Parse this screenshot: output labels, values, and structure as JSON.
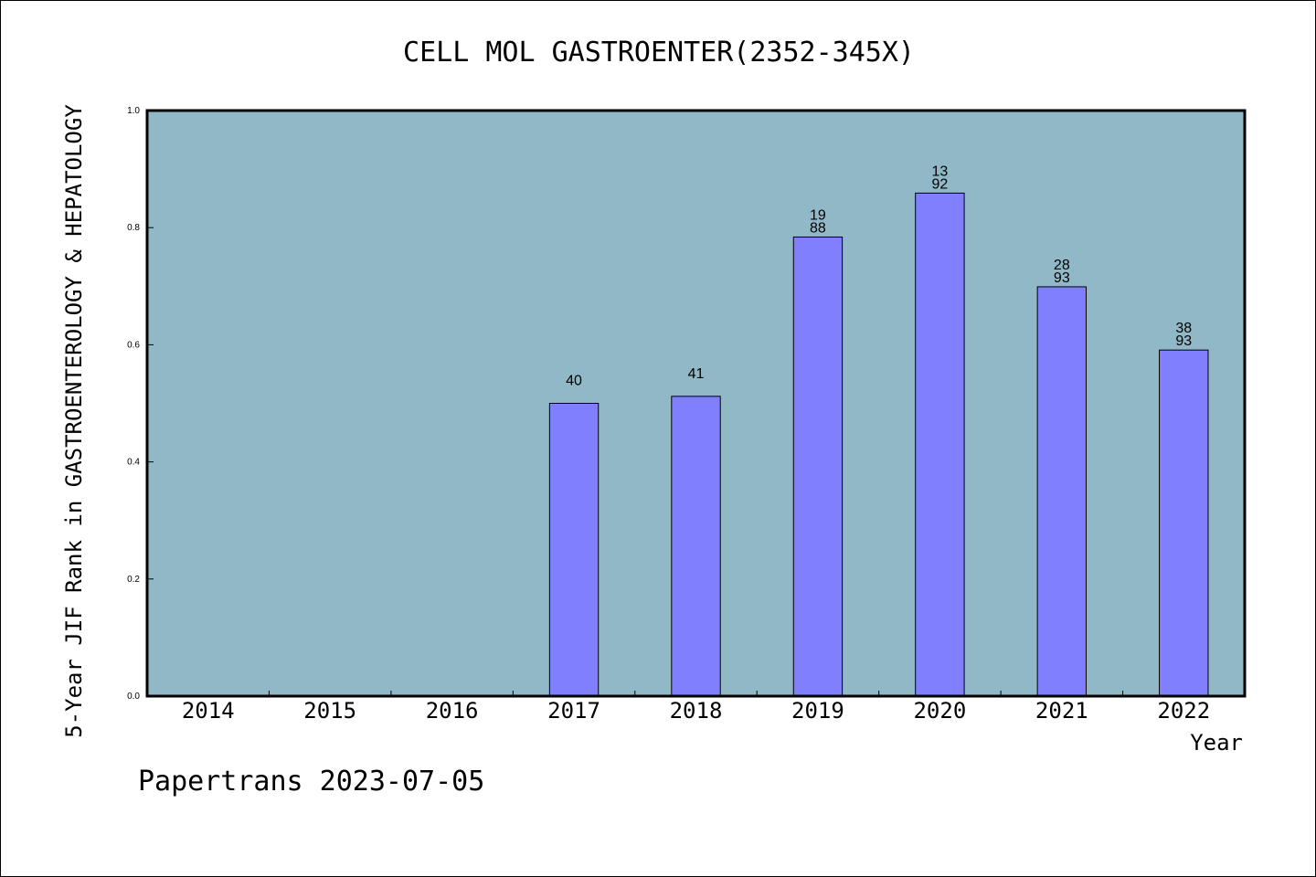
{
  "chart_data": {
    "type": "bar",
    "title": "CELL MOL GASTROENTER(2352-345X)",
    "xlabel": "Year",
    "ylabel": "5-Year JIF Rank in GASTROENTEROLOGY & HEPATOLOGY",
    "categories": [
      "2014",
      "2015",
      "2016",
      "2017",
      "2018",
      "2019",
      "2020",
      "2021",
      "2022"
    ],
    "values": [
      null,
      null,
      null,
      0.5,
      0.512,
      0.784,
      0.859,
      0.699,
      0.591
    ],
    "bar_labels": [
      null,
      null,
      null,
      [
        "40"
      ],
      [
        "41"
      ],
      [
        "19",
        "88"
      ],
      [
        "13",
        "92"
      ],
      [
        "28",
        "93"
      ],
      [
        "38",
        "93"
      ]
    ],
    "ylim": [
      0,
      1.0
    ],
    "yticks": [
      0.0,
      0.2,
      0.4,
      0.6,
      0.8,
      1.0
    ],
    "ytick_labels": [
      "0.0",
      "0.2",
      "0.4",
      "0.6",
      "0.8",
      "1.0"
    ],
    "grid": false,
    "legend": "none",
    "colors": {
      "plot_background": "#91b8c6",
      "bar_fill": "#8080ff",
      "bar_stroke": "#000000",
      "page_background": "#ffffff"
    }
  },
  "footer": {
    "text": "Papertrans 2023-07-05"
  }
}
